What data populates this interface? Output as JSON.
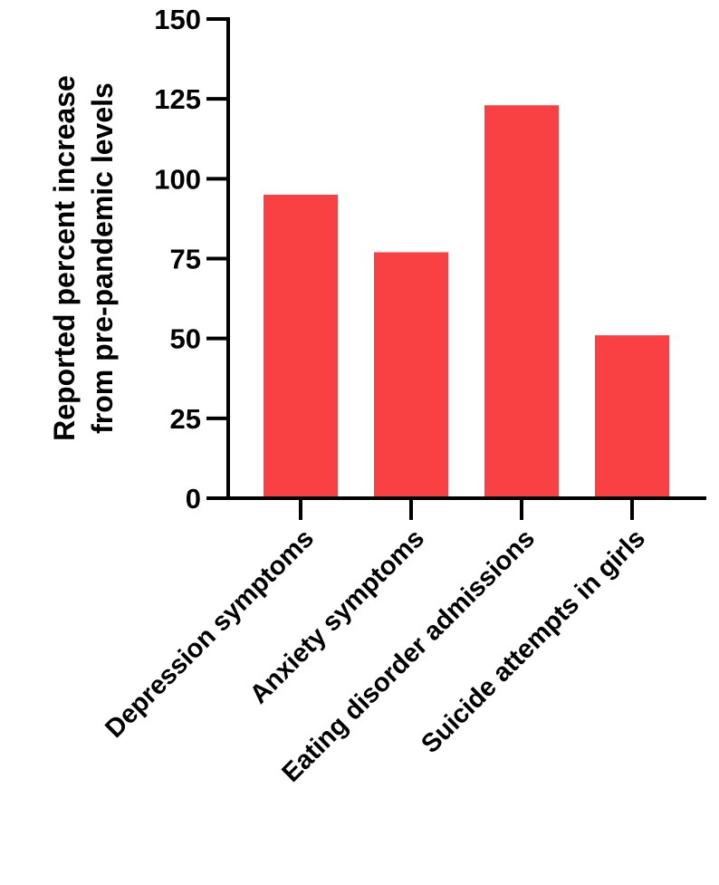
{
  "chart_data": {
    "type": "bar",
    "categories": [
      "Depression symptoms",
      "Anxiety symptoms",
      "Eating disorder admissions",
      "Suicide attempts in girls"
    ],
    "values": [
      95,
      77,
      123,
      51
    ],
    "title": "",
    "xlabel": "",
    "ylabel": [
      "Reported percent increase",
      "from pre-pandemic levels"
    ],
    "ylim": [
      0,
      150
    ],
    "yticks": [
      0,
      25,
      50,
      75,
      100,
      125,
      150
    ],
    "bar_color": "#f94144",
    "grid": false,
    "legend": "none"
  }
}
